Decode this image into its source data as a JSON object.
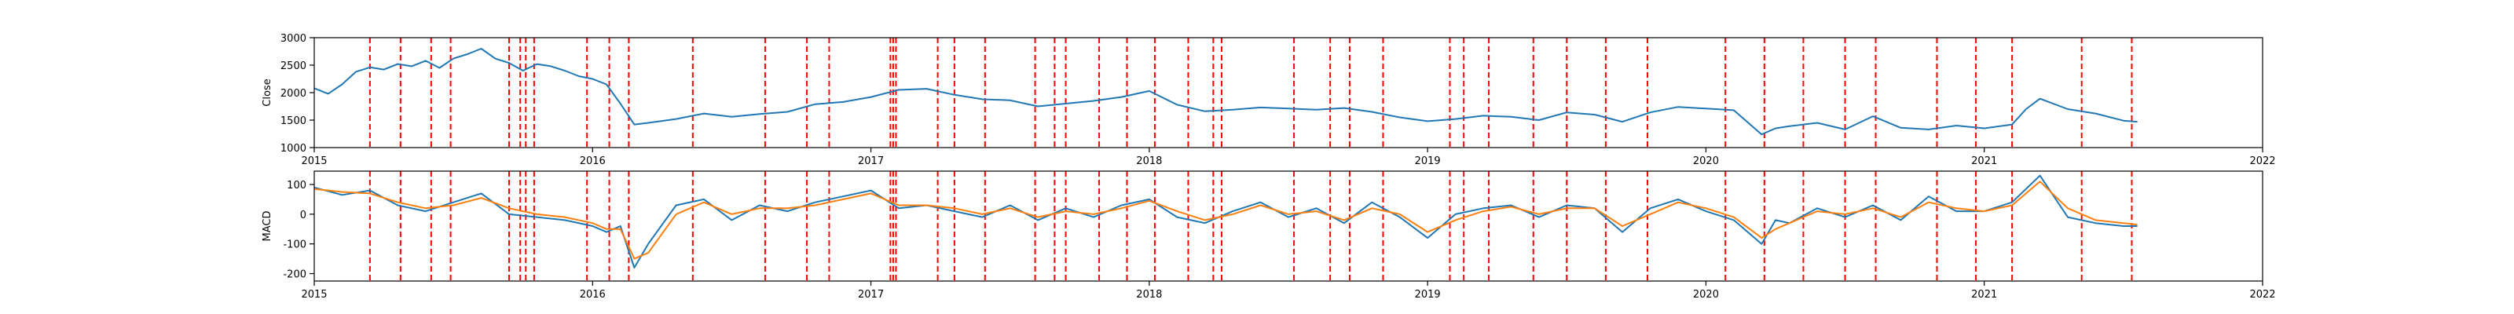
{
  "chart_data": [
    {
      "type": "line",
      "ylabel": "Close",
      "xlim": [
        2015,
        2022
      ],
      "ylim": [
        1000,
        3000
      ],
      "x_ticks": [
        "2015",
        "2016",
        "2017",
        "2018",
        "2019",
        "2020",
        "2021",
        "2022"
      ],
      "y_ticks": [
        1000,
        1500,
        2000,
        2500,
        3000
      ],
      "colors": {
        "series": "#1f77b4",
        "signal_lines": "#ff0000"
      },
      "series": [
        {
          "x": [
            2015.0,
            2015.05,
            2015.1,
            2015.15,
            2015.2,
            2015.25,
            2015.3,
            2015.35,
            2015.4,
            2015.45,
            2015.5,
            2015.55,
            2015.6,
            2015.65,
            2015.7,
            2015.75,
            2015.8,
            2015.85,
            2015.9,
            2015.95,
            2016.0,
            2016.05,
            2016.1,
            2016.15,
            2016.2,
            2016.3,
            2016.4,
            2016.5,
            2016.6,
            2016.7,
            2016.8,
            2016.9,
            2017.0,
            2017.1,
            2017.2,
            2017.3,
            2017.4,
            2017.5,
            2017.6,
            2017.7,
            2017.8,
            2017.9,
            2018.0,
            2018.1,
            2018.2,
            2018.3,
            2018.4,
            2018.5,
            2018.6,
            2018.7,
            2018.8,
            2018.9,
            2019.0,
            2019.1,
            2019.2,
            2019.3,
            2019.4,
            2019.5,
            2019.6,
            2019.7,
            2019.8,
            2019.9,
            2020.0,
            2020.1,
            2020.2,
            2020.25,
            2020.3,
            2020.4,
            2020.5,
            2020.6,
            2020.7,
            2020.8,
            2020.9,
            2021.0,
            2021.1,
            2021.15,
            2021.2,
            2021.3,
            2021.4,
            2021.5,
            2021.55
          ],
          "values": [
            2080,
            1980,
            2150,
            2380,
            2460,
            2420,
            2520,
            2480,
            2580,
            2450,
            2620,
            2700,
            2800,
            2620,
            2540,
            2400,
            2520,
            2480,
            2400,
            2300,
            2250,
            2150,
            1800,
            1420,
            1450,
            1520,
            1620,
            1560,
            1610,
            1650,
            1790,
            1830,
            1920,
            2050,
            2070,
            1960,
            1880,
            1860,
            1750,
            1800,
            1850,
            1920,
            2030,
            1780,
            1660,
            1690,
            1730,
            1710,
            1690,
            1720,
            1650,
            1550,
            1480,
            1520,
            1580,
            1560,
            1500,
            1640,
            1600,
            1470,
            1640,
            1740,
            1710,
            1680,
            1240,
            1350,
            1390,
            1450,
            1330,
            1570,
            1360,
            1330,
            1400,
            1350,
            1420,
            1700,
            1890,
            1700,
            1620,
            1490,
            1470
          ]
        }
      ],
      "vlines": [
        2015.2,
        2015.31,
        2015.42,
        2015.49,
        2015.7,
        2015.74,
        2015.76,
        2015.79,
        2015.98,
        2016.06,
        2016.13,
        2016.36,
        2016.62,
        2016.77,
        2016.85,
        2017.07,
        2017.08,
        2017.09,
        2017.24,
        2017.3,
        2017.41,
        2017.59,
        2017.66,
        2017.7,
        2017.82,
        2017.92,
        2018.02,
        2018.14,
        2018.23,
        2018.26,
        2018.52,
        2018.65,
        2018.72,
        2018.84,
        2019.08,
        2019.13,
        2019.22,
        2019.38,
        2019.5,
        2019.64,
        2019.79,
        2020.07,
        2020.21,
        2020.35,
        2020.5,
        2020.61,
        2020.83,
        2020.97,
        2021.1,
        2021.35,
        2021.53
      ]
    },
    {
      "type": "line",
      "ylabel": "MACD",
      "xlim": [
        2015,
        2022
      ],
      "ylim": [
        -225,
        145
      ],
      "x_ticks": [
        "2015",
        "2016",
        "2017",
        "2018",
        "2019",
        "2020",
        "2021",
        "2022"
      ],
      "y_ticks": [
        -200,
        -100,
        0,
        100
      ],
      "colors": {
        "macd": "#1f77b4",
        "signal": "#ff7f0e",
        "signal_lines": "#ff0000"
      },
      "series": [
        {
          "x": [
            2015.0,
            2015.1,
            2015.2,
            2015.3,
            2015.4,
            2015.5,
            2015.6,
            2015.7,
            2015.8,
            2015.9,
            2016.0,
            2016.05,
            2016.1,
            2016.15,
            2016.2,
            2016.3,
            2016.4,
            2016.5,
            2016.6,
            2016.7,
            2016.8,
            2016.9,
            2017.0,
            2017.1,
            2017.2,
            2017.3,
            2017.4,
            2017.5,
            2017.6,
            2017.7,
            2017.8,
            2017.9,
            2018.0,
            2018.1,
            2018.2,
            2018.3,
            2018.4,
            2018.5,
            2018.6,
            2018.7,
            2018.8,
            2018.9,
            2019.0,
            2019.1,
            2019.2,
            2019.3,
            2019.4,
            2019.5,
            2019.6,
            2019.7,
            2019.8,
            2019.9,
            2020.0,
            2020.1,
            2020.2,
            2020.25,
            2020.3,
            2020.4,
            2020.5,
            2020.6,
            2020.7,
            2020.8,
            2020.9,
            2021.0,
            2021.1,
            2021.2,
            2021.3,
            2021.4,
            2021.5,
            2021.55
          ],
          "values": [
            90,
            65,
            80,
            30,
            10,
            40,
            70,
            0,
            -10,
            -20,
            -40,
            -60,
            -40,
            -180,
            -100,
            30,
            50,
            -20,
            30,
            10,
            40,
            60,
            80,
            20,
            30,
            10,
            -10,
            30,
            -20,
            20,
            -10,
            30,
            50,
            -10,
            -30,
            10,
            40,
            -10,
            20,
            -30,
            40,
            -10,
            -80,
            0,
            20,
            30,
            -10,
            30,
            20,
            -60,
            20,
            50,
            10,
            -20,
            -100,
            -20,
            -30,
            20,
            -10,
            30,
            -20,
            60,
            10,
            10,
            40,
            130,
            -10,
            -30,
            -40,
            -40
          ]
        },
        {
          "x": [
            2015.0,
            2015.1,
            2015.2,
            2015.3,
            2015.4,
            2015.5,
            2015.6,
            2015.7,
            2015.8,
            2015.9,
            2016.0,
            2016.05,
            2016.1,
            2016.15,
            2016.2,
            2016.3,
            2016.4,
            2016.5,
            2016.6,
            2016.7,
            2016.8,
            2016.9,
            2017.0,
            2017.1,
            2017.2,
            2017.3,
            2017.4,
            2017.5,
            2017.6,
            2017.7,
            2017.8,
            2017.9,
            2018.0,
            2018.1,
            2018.2,
            2018.3,
            2018.4,
            2018.5,
            2018.6,
            2018.7,
            2018.8,
            2018.9,
            2019.0,
            2019.1,
            2019.2,
            2019.3,
            2019.4,
            2019.5,
            2019.6,
            2019.7,
            2019.8,
            2019.9,
            2020.0,
            2020.1,
            2020.2,
            2020.25,
            2020.3,
            2020.4,
            2020.5,
            2020.6,
            2020.7,
            2020.8,
            2020.9,
            2021.0,
            2021.1,
            2021.2,
            2021.3,
            2021.4,
            2021.5,
            2021.55
          ],
          "values": [
            85,
            75,
            70,
            40,
            20,
            30,
            55,
            20,
            0,
            -10,
            -30,
            -50,
            -50,
            -150,
            -130,
            0,
            40,
            0,
            20,
            20,
            30,
            50,
            70,
            30,
            30,
            20,
            0,
            20,
            -10,
            10,
            0,
            20,
            45,
            10,
            -20,
            0,
            30,
            0,
            10,
            -20,
            20,
            0,
            -60,
            -20,
            10,
            25,
            0,
            20,
            20,
            -40,
            0,
            40,
            20,
            -10,
            -80,
            -50,
            -30,
            10,
            0,
            20,
            -10,
            40,
            20,
            10,
            30,
            110,
            20,
            -20,
            -30,
            -35
          ]
        }
      ],
      "vlines": [
        2015.2,
        2015.31,
        2015.42,
        2015.49,
        2015.7,
        2015.74,
        2015.76,
        2015.79,
        2015.98,
        2016.06,
        2016.13,
        2016.36,
        2016.62,
        2016.77,
        2016.85,
        2017.07,
        2017.08,
        2017.09,
        2017.24,
        2017.3,
        2017.41,
        2017.59,
        2017.66,
        2017.7,
        2017.82,
        2017.92,
        2018.02,
        2018.14,
        2018.23,
        2018.26,
        2018.52,
        2018.65,
        2018.72,
        2018.84,
        2019.08,
        2019.13,
        2019.22,
        2019.38,
        2019.5,
        2019.64,
        2019.79,
        2020.07,
        2020.21,
        2020.35,
        2020.5,
        2020.61,
        2020.83,
        2020.97,
        2021.1,
        2021.35,
        2021.53
      ]
    }
  ]
}
